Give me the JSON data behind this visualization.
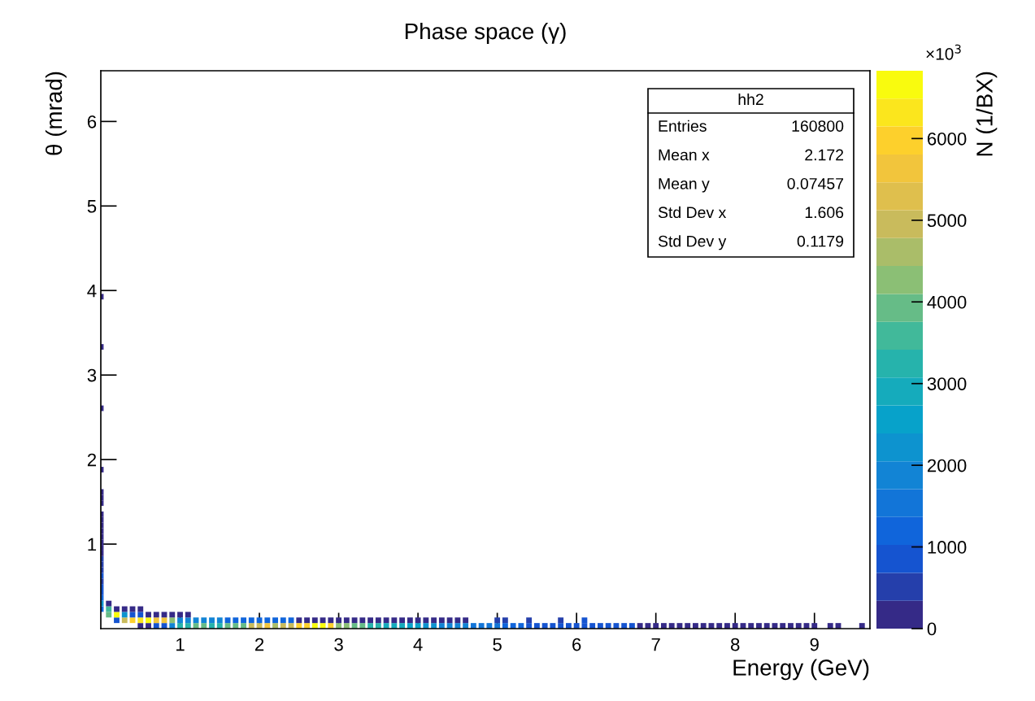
{
  "chart_data": {
    "type": "scatter",
    "title": "Phase space (γ)",
    "xlabel": "Energy (GeV)",
    "ylabel": "θ (mrad)",
    "clabel": "N (1/BX)",
    "annotations": [
      "×10$^{3}$",
      "hh2",
      "Entries",
      "160800",
      "Mean x",
      "2.172",
      "Mean y",
      "0.07457",
      "Std Dev x",
      "1.606",
      "Std Dev y",
      "0.1179"
    ],
    "marker": "square",
    "series": [
      {
        "x": [
          0.5,
          0.6,
          0.7,
          0.8,
          0.9,
          1.0,
          1.1,
          1.2,
          1.3,
          1.4,
          1.5,
          1.6,
          1.7,
          1.8,
          1.9,
          2.0,
          2.1,
          2.2,
          2.3,
          2.4,
          2.5,
          2.6,
          2.7,
          2.8,
          2.9,
          3.0,
          3.1,
          3.2,
          3.3,
          3.4,
          3.5,
          3.6,
          3.7,
          3.8,
          3.9,
          4.0,
          4.1,
          4.2,
          4.3,
          4.4,
          4.5,
          4.6,
          4.7,
          4.8,
          4.9,
          5.0,
          5.1,
          5.2,
          5.3,
          5.4,
          5.5,
          5.6,
          5.7,
          5.8,
          5.9,
          6.0,
          6.1,
          6.2,
          6.3,
          6.4,
          6.5,
          6.6,
          6.7,
          6.8,
          6.9,
          7.0,
          7.1,
          7.2,
          7.3,
          7.4,
          7.5,
          7.6,
          7.7,
          7.8,
          7.9,
          8.0,
          8.1,
          8.2,
          8.3,
          8.4,
          8.5,
          8.6,
          8.7,
          8.8,
          8.9,
          9.0,
          9.2,
          9.3,
          9.6,
          0.2,
          0.3,
          0.4,
          0.5,
          0.6,
          0.7,
          0.8,
          0.9,
          1.0,
          1.1,
          1.2,
          1.3,
          1.4,
          1.5,
          1.6,
          1.7,
          1.8,
          1.9,
          2.0,
          2.1,
          2.2,
          2.3,
          2.4,
          2.5,
          2.6,
          2.7,
          2.8,
          2.9,
          3.0,
          3.1,
          3.2,
          3.3,
          3.4,
          3.5,
          3.6,
          3.7,
          3.8,
          3.9,
          4.0,
          4.1,
          4.2,
          4.3,
          4.4,
          4.5,
          4.6,
          5.0,
          5.1,
          5.4,
          5.8,
          6.1,
          0.1,
          0.2,
          0.3,
          0.4,
          0.5,
          0.6,
          0.7,
          0.8,
          0.9,
          1.0,
          1.1,
          0.0,
          0.1,
          0.2,
          0.3,
          0.4,
          0.5,
          0.0,
          0.1,
          0.0,
          0.0,
          0.0,
          0.0,
          0.0,
          0.0,
          0.0,
          0.0,
          0.0,
          0.0,
          0.0,
          0.0,
          0.0,
          0.0,
          0.0,
          0.0,
          0.0,
          0.0,
          0.0,
          0.0,
          0.0,
          0.0,
          0.0
        ],
        "values": [
          0.033,
          0.033,
          0.033,
          0.033,
          0.033,
          0.033,
          0.033,
          0.033,
          0.033,
          0.033,
          0.033,
          0.033,
          0.033,
          0.033,
          0.033,
          0.033,
          0.033,
          0.033,
          0.033,
          0.033,
          0.033,
          0.033,
          0.033,
          0.033,
          0.033,
          0.033,
          0.033,
          0.033,
          0.033,
          0.033,
          0.033,
          0.033,
          0.033,
          0.033,
          0.033,
          0.033,
          0.033,
          0.033,
          0.033,
          0.033,
          0.033,
          0.033,
          0.033,
          0.033,
          0.033,
          0.033,
          0.033,
          0.033,
          0.033,
          0.033,
          0.033,
          0.033,
          0.033,
          0.033,
          0.033,
          0.033,
          0.033,
          0.033,
          0.033,
          0.033,
          0.033,
          0.033,
          0.033,
          0.033,
          0.033,
          0.033,
          0.033,
          0.033,
          0.033,
          0.033,
          0.033,
          0.033,
          0.033,
          0.033,
          0.033,
          0.033,
          0.033,
          0.033,
          0.033,
          0.033,
          0.033,
          0.033,
          0.033,
          0.033,
          0.033,
          0.033,
          0.033,
          0.033,
          0.033,
          0.099,
          0.099,
          0.099,
          0.099,
          0.099,
          0.099,
          0.099,
          0.099,
          0.099,
          0.099,
          0.099,
          0.099,
          0.099,
          0.099,
          0.099,
          0.099,
          0.099,
          0.099,
          0.099,
          0.099,
          0.099,
          0.099,
          0.099,
          0.099,
          0.099,
          0.099,
          0.099,
          0.099,
          0.099,
          0.099,
          0.099,
          0.099,
          0.099,
          0.099,
          0.099,
          0.099,
          0.099,
          0.099,
          0.099,
          0.099,
          0.099,
          0.099,
          0.099,
          0.099,
          0.099,
          0.099,
          0.099,
          0.099,
          0.099,
          0.099,
          0.165,
          0.165,
          0.165,
          0.165,
          0.165,
          0.165,
          0.165,
          0.165,
          0.165,
          0.165,
          0.165,
          0.231,
          0.231,
          0.231,
          0.231,
          0.231,
          0.231,
          0.297,
          0.297,
          0.363,
          0.429,
          0.495,
          0.561,
          0.627,
          0.693,
          0.759,
          0.825,
          0.891,
          0.957,
          1.023,
          1.089,
          1.155,
          1.221,
          1.287,
          1.353,
          1.485,
          1.551,
          1.617,
          1.881,
          2.607,
          3.333,
          3.927
        ],
        "cvalues": [
          200,
          200,
          700,
          900,
          1800,
          3200,
          3400,
          4000,
          4000,
          3400,
          3400,
          3800,
          3800,
          3800,
          4800,
          4800,
          5500,
          4700,
          4800,
          4800,
          6000,
          6000,
          6700,
          6700,
          6000,
          4400,
          4400,
          3800,
          3800,
          3100,
          3100,
          2900,
          2900,
          2900,
          2500,
          2500,
          2200,
          2200,
          1900,
          1900,
          1900,
          1900,
          1400,
          1400,
          1400,
          1400,
          1200,
          1200,
          1200,
          1000,
          1000,
          1000,
          1000,
          1000,
          1000,
          1000,
          1000,
          1000,
          800,
          800,
          800,
          900,
          900,
          300,
          300,
          300,
          300,
          300,
          300,
          300,
          300,
          300,
          300,
          300,
          300,
          300,
          300,
          300,
          300,
          300,
          300,
          300,
          300,
          300,
          300,
          300,
          300,
          300,
          300,
          1000,
          4800,
          6000,
          6300,
          6700,
          5800,
          5800,
          4200,
          2000,
          2000,
          2000,
          2000,
          2000,
          2000,
          1300,
          1300,
          1300,
          1300,
          1300,
          1100,
          1100,
          1100,
          1100,
          300,
          300,
          300,
          300,
          300,
          300,
          300,
          300,
          300,
          300,
          300,
          300,
          300,
          300,
          300,
          300,
          300,
          300,
          300,
          300,
          300,
          300,
          400,
          400,
          400,
          400,
          800,
          3800,
          6700,
          2200,
          1000,
          1000,
          250,
          250,
          250,
          250,
          250,
          250,
          1100,
          3600,
          250,
          250,
          250,
          250,
          2300,
          250,
          1100,
          700,
          1000,
          500,
          900,
          600,
          400,
          400,
          300,
          300,
          300,
          300,
          300,
          300,
          300,
          300,
          300,
          300,
          300,
          300,
          200,
          300,
          300
        ]
      }
    ],
    "xlim": [
      0,
      9.7
    ],
    "ylim": [
      0,
      6.6
    ],
    "xticks": [
      1,
      2,
      3,
      4,
      5,
      6,
      7,
      8,
      9
    ],
    "yticks": [
      1,
      2,
      3,
      4,
      5,
      6
    ],
    "clim": [
      0,
      6830
    ],
    "cticks": [
      0,
      1000,
      2000,
      3000,
      4000,
      5000,
      6000
    ]
  }
}
